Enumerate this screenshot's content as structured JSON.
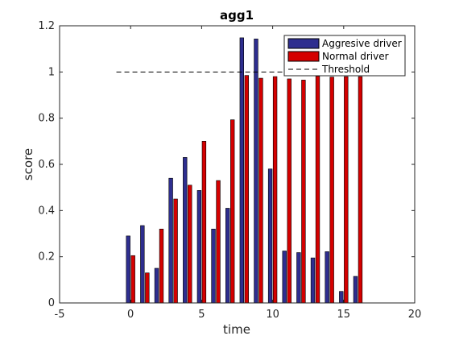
{
  "chart_data": {
    "type": "bar",
    "title": "agg1",
    "xlabel": "time",
    "ylabel": "score",
    "xlim": [
      -5,
      20
    ],
    "ylim": [
      0,
      1.2
    ],
    "xticks": [
      -5,
      0,
      5,
      10,
      15,
      20
    ],
    "yticks": [
      0,
      0.2,
      0.4,
      0.6,
      0.8,
      1,
      1.2
    ],
    "xtick_labels": [
      "-5",
      "0",
      "5",
      "10",
      "15",
      "20"
    ],
    "ytick_labels": [
      "0",
      "0.2",
      "0.4",
      "0.6",
      "0.8",
      "1",
      "1.2"
    ],
    "grid": false,
    "legend_position": "top-right",
    "x": [
      0,
      1,
      2,
      3,
      4,
      5,
      6,
      7,
      8,
      9,
      10,
      11,
      12,
      13,
      14,
      15,
      16
    ],
    "series": [
      {
        "name": "Aggresive driver",
        "color": "#2e2e8f",
        "values": [
          0.29,
          0.335,
          0.15,
          0.54,
          0.63,
          0.487,
          0.32,
          0.41,
          1.148,
          1.143,
          0.58,
          0.225,
          0.218,
          0.195,
          0.222,
          0.05,
          0.115
        ]
      },
      {
        "name": "Normal driver",
        "color": "#d40000",
        "values": [
          0.205,
          0.13,
          0.32,
          0.45,
          0.51,
          0.7,
          0.53,
          0.793,
          0.985,
          0.973,
          0.98,
          0.97,
          0.965,
          0.982,
          0.978,
          0.98,
          0.98
        ]
      }
    ],
    "threshold": {
      "name": "Threshold",
      "value": 1,
      "x_range": [
        -1,
        16.5
      ]
    }
  }
}
